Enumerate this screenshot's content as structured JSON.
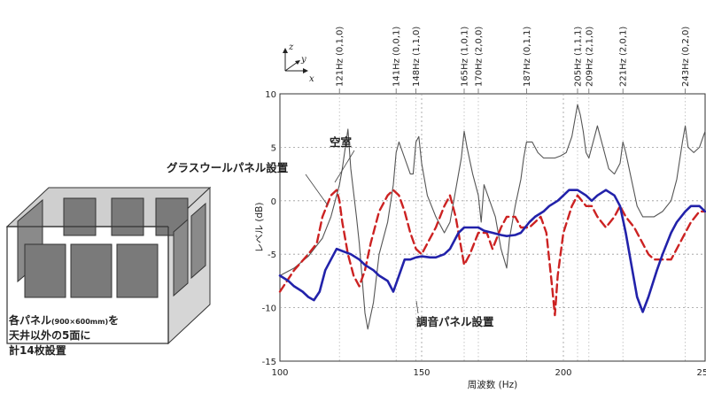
{
  "chart_data": {
    "type": "line",
    "xlabel": "周波数 (Hz)",
    "ylabel": "レベル (dB)",
    "xlim": [
      100,
      250
    ],
    "ylim": [
      -15,
      10
    ],
    "x_ticks": [
      100,
      150,
      200,
      250
    ],
    "y_ticks": [
      -15,
      -10,
      -5,
      0,
      5,
      10
    ],
    "grid": true,
    "series": [
      {
        "name": "空室",
        "color": "#555555",
        "style": "solid",
        "x": [
          100,
          105,
          110,
          115,
          118,
          120,
          121,
          122,
          124,
          125,
          127,
          128,
          130,
          131,
          133,
          135,
          138,
          140,
          141,
          142,
          144,
          146,
          147,
          148,
          149,
          150,
          152,
          155,
          158,
          160,
          162,
          164,
          165,
          166,
          168,
          170,
          171,
          172,
          174,
          176,
          178,
          180,
          181,
          183,
          185,
          186,
          187,
          189,
          191,
          193,
          195,
          197,
          199,
          201,
          203,
          204,
          205,
          206,
          207,
          208,
          209,
          210,
          212,
          214,
          216,
          218,
          220,
          221,
          222,
          224,
          226,
          228,
          230,
          232,
          235,
          238,
          240,
          242,
          243,
          244,
          246,
          248,
          250
        ],
        "y": [
          -7,
          -6.3,
          -5.2,
          -3.5,
          -1.5,
          0.5,
          1.5,
          3,
          6.7,
          3,
          -1.5,
          -4,
          -10.5,
          -12,
          -9.5,
          -5,
          -2,
          1.5,
          4.5,
          5.5,
          4,
          2.5,
          2.5,
          5.5,
          6,
          3.5,
          0.5,
          -1.5,
          -3,
          -2,
          1,
          4,
          6.5,
          5,
          2.5,
          0.5,
          -2,
          1.5,
          0,
          -1.5,
          -4.5,
          -6.3,
          -3.5,
          -0.5,
          2,
          4,
          5.5,
          5.5,
          4.5,
          4,
          4,
          4,
          4.2,
          4.5,
          6,
          7.5,
          9,
          8,
          6.5,
          4.5,
          4,
          5,
          7,
          5,
          3,
          2.5,
          3.5,
          5.5,
          4.5,
          2,
          -0.5,
          -1.5,
          -1.5,
          -1.5,
          -1,
          0,
          2,
          5.5,
          7,
          5,
          4.5,
          5,
          6.5
        ]
      },
      {
        "name": "グラスウールパネル設置",
        "color": "#cc2222",
        "style": "dashed",
        "x": [
          100,
          105,
          110,
          113,
          115,
          118,
          120,
          121,
          122,
          124,
          126,
          128,
          130,
          132,
          135,
          138,
          140,
          142,
          144,
          146,
          148,
          150,
          152,
          155,
          158,
          160,
          162,
          163,
          165,
          167,
          170,
          173,
          175,
          178,
          180,
          183,
          185,
          188,
          190,
          192,
          194,
          196,
          197,
          198,
          200,
          203,
          205,
          208,
          210,
          212,
          215,
          218,
          220,
          222,
          225,
          228,
          230,
          232,
          235,
          238,
          240,
          243,
          245,
          248,
          250
        ],
        "y": [
          -8.5,
          -6.5,
          -5,
          -4,
          -1.5,
          0.5,
          1,
          0,
          -2,
          -5,
          -7,
          -8,
          -6.5,
          -4,
          -1,
          0.5,
          1,
          0.5,
          -1,
          -3,
          -4.5,
          -5,
          -4,
          -2.5,
          -0.5,
          0.5,
          -1.5,
          -3,
          -6,
          -5,
          -3,
          -3,
          -4.5,
          -2.5,
          -1.5,
          -1.5,
          -2.5,
          -2.5,
          -2,
          -1.5,
          -3,
          -8,
          -10.7,
          -7,
          -3,
          -0.5,
          0.5,
          -0.5,
          -0.5,
          -1.5,
          -2.5,
          -1.5,
          -0.5,
          -1.5,
          -2.5,
          -4,
          -5,
          -5.5,
          -5.5,
          -5.5,
          -4.5,
          -3,
          -2,
          -1,
          -1
        ]
      },
      {
        "name": "調音パネル設置",
        "color": "#2222aa",
        "style": "solid",
        "x": [
          100,
          103,
          105,
          108,
          110,
          112,
          114,
          116,
          118,
          120,
          123,
          125,
          128,
          130,
          133,
          135,
          138,
          140,
          142,
          144,
          146,
          148,
          150,
          153,
          155,
          158,
          160,
          163,
          165,
          168,
          170,
          172,
          175,
          178,
          180,
          183,
          185,
          188,
          190,
          193,
          195,
          198,
          200,
          202,
          205,
          208,
          210,
          212,
          215,
          218,
          220,
          222,
          224,
          226,
          228,
          230,
          233,
          235,
          238,
          240,
          243,
          245,
          248,
          250
        ],
        "y": [
          -7,
          -7.5,
          -8,
          -8.5,
          -9,
          -9.3,
          -8.5,
          -6.5,
          -5.5,
          -4.5,
          -4.8,
          -5,
          -5.5,
          -6,
          -6.5,
          -7,
          -7.5,
          -8.5,
          -7,
          -5.5,
          -5.5,
          -5.3,
          -5.2,
          -5.3,
          -5.3,
          -5,
          -4.5,
          -3,
          -2.5,
          -2.5,
          -2.5,
          -2.8,
          -3,
          -3.2,
          -3.3,
          -3.2,
          -3,
          -2,
          -1.5,
          -1,
          -0.5,
          0,
          0.5,
          1,
          1,
          0.5,
          0,
          0.5,
          1,
          0.5,
          -0.5,
          -3,
          -6,
          -9,
          -10.4,
          -9,
          -6.5,
          -5,
          -3,
          -2,
          -1,
          -0.5,
          -0.5,
          -1
        ]
      }
    ],
    "mode_markers": [
      {
        "freq": 121,
        "label": "121Hz (0,1,0)"
      },
      {
        "freq": 141,
        "label": "141Hz (0,0,1)"
      },
      {
        "freq": 148,
        "label": "148Hz (1,1,0)"
      },
      {
        "freq": 165,
        "label": "165Hz (1,0,1)"
      },
      {
        "freq": 170,
        "label": "170Hz (2,0,0)"
      },
      {
        "freq": 187,
        "label": "187Hz (0,1,1)"
      },
      {
        "freq": 205,
        "label": "205Hz (1,1,1)"
      },
      {
        "freq": 209,
        "label": "209Hz (2,1,0)"
      },
      {
        "freq": 221,
        "label": "221Hz (2,0,1)"
      },
      {
        "freq": 243,
        "label": "243Hz (0,2,0)"
      }
    ]
  },
  "annotations": {
    "empty_room": "空室",
    "glasswool": "グラスウールパネル設置",
    "tuning": "調音パネル設置"
  },
  "axes_icon": {
    "z": "z",
    "y": "y",
    "x": "x"
  },
  "caption": {
    "line1_a": "各パネル",
    "line1_small": "(900×600mm)",
    "line1_b": "を",
    "line2": "天井以外の5面に",
    "line3": "計14枚設置"
  }
}
